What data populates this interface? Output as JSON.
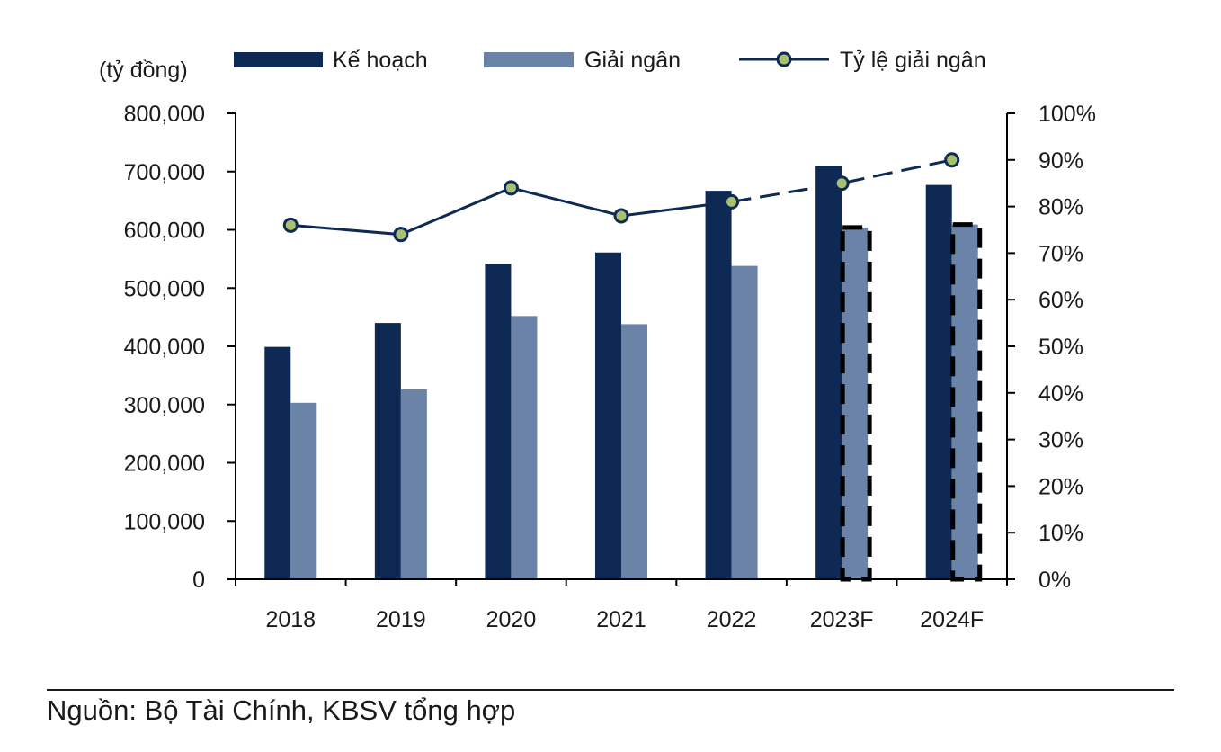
{
  "chart_data": {
    "type": "bar",
    "categories": [
      "2018",
      "2019",
      "2020",
      "2021",
      "2022",
      "2023F",
      "2024F"
    ],
    "series": [
      {
        "name": "Kế hoạch",
        "kind": "bar",
        "axis": "left",
        "color": "#0e2a54",
        "values": [
          399000,
          440000,
          542000,
          561000,
          667000,
          710000,
          677000
        ]
      },
      {
        "name": "Giải ngân",
        "kind": "bar",
        "axis": "left",
        "color": "#6b83a6",
        "values": [
          303000,
          326000,
          452000,
          438000,
          538000,
          604000,
          609000
        ]
      },
      {
        "name": "Tỷ lệ giải ngân",
        "kind": "line",
        "axis": "right",
        "color": "#0e2a54",
        "marker_color": "#a8c070",
        "values": [
          76,
          74,
          84,
          78,
          81,
          85,
          90
        ]
      }
    ],
    "forecast_categories": [
      "2023F",
      "2024F"
    ],
    "y_left": {
      "label": "(tỷ đồng)",
      "min": 0,
      "max": 800000,
      "step": 100000,
      "ticks": [
        "0",
        "100,000",
        "200,000",
        "300,000",
        "400,000",
        "500,000",
        "600,000",
        "700,000",
        "800,000"
      ]
    },
    "y_right": {
      "min": 0,
      "max": 100,
      "step": 10,
      "ticks": [
        "0%",
        "10%",
        "20%",
        "30%",
        "40%",
        "50%",
        "60%",
        "70%",
        "80%",
        "90%",
        "100%"
      ]
    },
    "legend_position": "top",
    "grid": false
  },
  "source": "Nguồn: Bộ Tài Chính, KBSV tổng hợp"
}
